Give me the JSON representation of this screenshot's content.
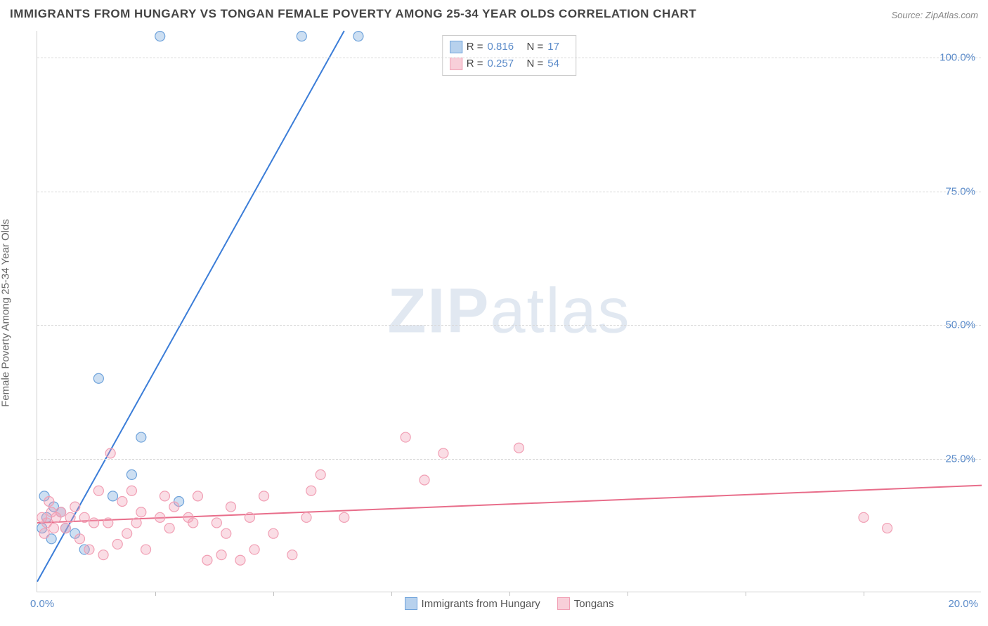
{
  "title": "IMMIGRANTS FROM HUNGARY VS TONGAN FEMALE POVERTY AMONG 25-34 YEAR OLDS CORRELATION CHART",
  "source": {
    "label": "Source: ",
    "value": "ZipAtlas.com"
  },
  "ylabel": "Female Poverty Among 25-34 Year Olds",
  "watermark": {
    "bold": "ZIP",
    "rest": "atlas"
  },
  "chart": {
    "type": "scatter",
    "xlim": [
      0,
      20
    ],
    "ylim": [
      0,
      105
    ],
    "xtick_minor": [
      2.5,
      5,
      7.5,
      10,
      12.5,
      15,
      17.5
    ],
    "xtick_labels": {
      "start": "0.0%",
      "end": "20.0%"
    },
    "ytick_positions": [
      25,
      50,
      75,
      100
    ],
    "ytick_labels": [
      "25.0%",
      "50.0%",
      "75.0%",
      "100.0%"
    ],
    "grid_color": "#d8d8d8",
    "background_color": "#ffffff",
    "marker_radius": 7,
    "marker_fill_opacity": 0.35,
    "marker_stroke_width": 1.2,
    "line_width": 2
  },
  "series": [
    {
      "name": "Immigrants from Hungary",
      "color": "#6fa3db",
      "line_color": "#3b7dd8",
      "R": "0.816",
      "N": "17",
      "trend": {
        "x1": 0,
        "y1": 2,
        "x2": 6.5,
        "y2": 105
      },
      "points": [
        [
          0.1,
          12
        ],
        [
          0.15,
          18
        ],
        [
          0.2,
          14
        ],
        [
          0.3,
          10
        ],
        [
          0.35,
          16
        ],
        [
          0.5,
          15
        ],
        [
          0.6,
          12
        ],
        [
          0.8,
          11
        ],
        [
          1.0,
          8
        ],
        [
          1.3,
          40
        ],
        [
          1.6,
          18
        ],
        [
          2.0,
          22
        ],
        [
          2.2,
          29
        ],
        [
          2.6,
          104
        ],
        [
          3.0,
          17
        ],
        [
          5.6,
          104
        ],
        [
          6.8,
          104
        ]
      ]
    },
    {
      "name": "Tongans",
      "color": "#f19fb4",
      "line_color": "#e86d8a",
      "R": "0.257",
      "N": "54",
      "trend": {
        "x1": 0,
        "y1": 13,
        "x2": 20,
        "y2": 20
      },
      "points": [
        [
          0.1,
          14
        ],
        [
          0.15,
          11
        ],
        [
          0.2,
          13
        ],
        [
          0.25,
          17
        ],
        [
          0.3,
          15
        ],
        [
          0.35,
          12
        ],
        [
          0.4,
          14
        ],
        [
          0.5,
          15
        ],
        [
          0.6,
          12
        ],
        [
          0.7,
          14
        ],
        [
          0.8,
          16
        ],
        [
          0.9,
          10
        ],
        [
          1.0,
          14
        ],
        [
          1.1,
          8
        ],
        [
          1.2,
          13
        ],
        [
          1.3,
          19
        ],
        [
          1.4,
          7
        ],
        [
          1.5,
          13
        ],
        [
          1.55,
          26
        ],
        [
          1.7,
          9
        ],
        [
          1.8,
          17
        ],
        [
          1.9,
          11
        ],
        [
          2.0,
          19
        ],
        [
          2.1,
          13
        ],
        [
          2.2,
          15
        ],
        [
          2.3,
          8
        ],
        [
          2.6,
          14
        ],
        [
          2.7,
          18
        ],
        [
          2.8,
          12
        ],
        [
          2.9,
          16
        ],
        [
          3.3,
          13
        ],
        [
          3.4,
          18
        ],
        [
          3.6,
          6
        ],
        [
          3.8,
          13
        ],
        [
          3.9,
          7
        ],
        [
          4.0,
          11
        ],
        [
          4.1,
          16
        ],
        [
          4.3,
          6
        ],
        [
          4.5,
          14
        ],
        [
          4.8,
          18
        ],
        [
          5.0,
          11
        ],
        [
          5.4,
          7
        ],
        [
          5.7,
          14
        ],
        [
          5.8,
          19
        ],
        [
          6.0,
          22
        ],
        [
          6.5,
          14
        ],
        [
          7.8,
          29
        ],
        [
          8.2,
          21
        ],
        [
          8.6,
          26
        ],
        [
          10.2,
          27
        ],
        [
          17.5,
          14
        ],
        [
          18.0,
          12
        ],
        [
          3.2,
          14
        ],
        [
          4.6,
          8
        ]
      ]
    }
  ],
  "legend_bottom": [
    {
      "label": "Immigrants from Hungary",
      "color": "#6fa3db"
    },
    {
      "label": "Tongans",
      "color": "#f19fb4"
    }
  ]
}
